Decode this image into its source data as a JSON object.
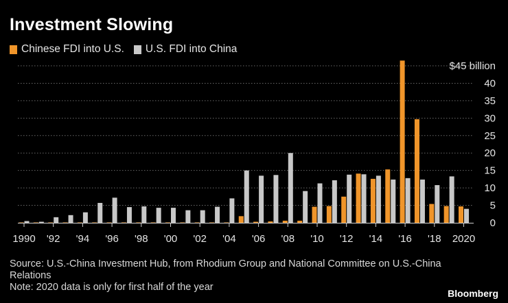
{
  "title": "Investment Slowing",
  "legend": [
    {
      "label": "Chinese FDI into U.S.",
      "color": "#f0952a"
    },
    {
      "label": "U.S. FDI into China",
      "color": "#c8c8c8"
    }
  ],
  "source": "Source: U.S.-China Investment Hub, from Rhodium Group and National Committee on U.S.-China Relations",
  "note": "Note: 2020 data is only for first half of the year",
  "brand": "Bloomberg",
  "chart_data": {
    "type": "bar",
    "title": "Investment Slowing",
    "xlabel": "",
    "ylabel": "$ billion",
    "ylim": [
      0,
      45
    ],
    "yticks": [
      0,
      5,
      10,
      15,
      20,
      25,
      30,
      35,
      40,
      45
    ],
    "ytick_labels": [
      "0",
      "5",
      "10",
      "15",
      "20",
      "25",
      "30",
      "35",
      "40",
      "$45 billion"
    ],
    "grid": true,
    "categories": [
      1990,
      1991,
      1992,
      1993,
      1994,
      1995,
      1996,
      1997,
      1998,
      1999,
      2000,
      2001,
      2002,
      2003,
      2004,
      2005,
      2006,
      2007,
      2008,
      2009,
      2010,
      2011,
      2012,
      2013,
      2014,
      2015,
      2016,
      2017,
      2018,
      2019,
      2020
    ],
    "xtick_labels": [
      "1990",
      "'92",
      "'94",
      "'96",
      "'98",
      "'00",
      "'02",
      "'04",
      "'06",
      "'08",
      "'10",
      "'12",
      "'14",
      "'16",
      "'18",
      "2020"
    ],
    "series": [
      {
        "name": "Chinese FDI into U.S.",
        "color": "#f0952a",
        "values": [
          0.1,
          0.1,
          0.1,
          0.1,
          0.1,
          0.1,
          0.1,
          0.1,
          0.1,
          0.1,
          0.1,
          0.1,
          0.1,
          0.1,
          0.1,
          1.9,
          0.3,
          0.4,
          0.6,
          0.6,
          4.6,
          4.8,
          7.5,
          14.1,
          12.6,
          15.3,
          46.5,
          29.7,
          5.4,
          4.8,
          4.7
        ]
      },
      {
        "name": "U.S. FDI into China",
        "color": "#c8c8c8",
        "values": [
          0.5,
          0.3,
          1.6,
          2.2,
          3.0,
          5.7,
          7.2,
          4.5,
          4.7,
          4.3,
          4.3,
          3.6,
          3.6,
          4.6,
          7.0,
          15.0,
          13.5,
          13.7,
          20.0,
          9.1,
          11.3,
          12.2,
          13.8,
          13.9,
          13.5,
          12.4,
          12.8,
          12.4,
          10.8,
          13.3,
          4.0
        ]
      }
    ]
  }
}
